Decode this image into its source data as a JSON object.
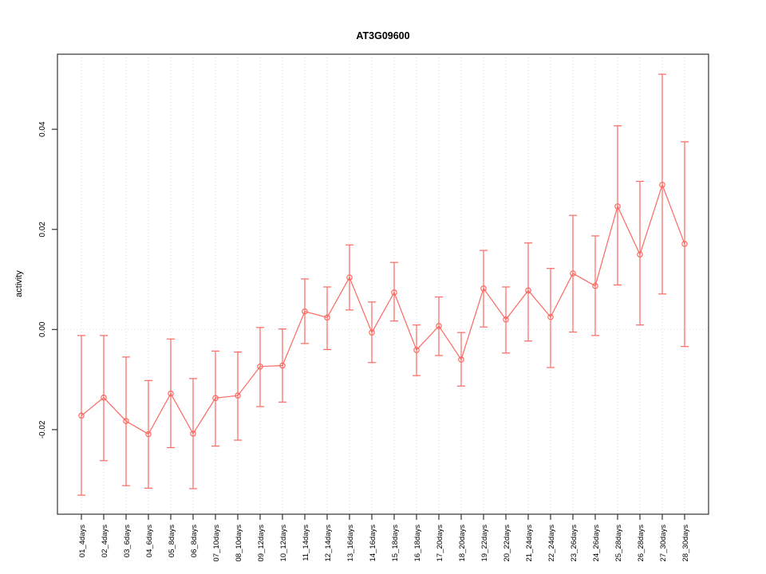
{
  "chart_data": {
    "type": "line",
    "title": "AT3G09600",
    "ylabel": "activity",
    "xlabel": "",
    "legend": "none",
    "marker": "open-circle",
    "error_bars": true,
    "grid": "dotted vertical gridline at every category; dotted horizontal line at 0",
    "series_color": "#fb6962",
    "grid_color": "#dedede",
    "axis_color": "#333333",
    "categories": [
      "01_4days",
      "02_4days",
      "03_6days",
      "04_6days",
      "05_8days",
      "06_8days",
      "07_10days",
      "08_10days",
      "09_12days",
      "10_12days",
      "11_14days",
      "12_14days",
      "13_16days",
      "14_16days",
      "15_18days",
      "16_18days",
      "17_20days",
      "18_20days",
      "19_22days",
      "20_22days",
      "21_24days",
      "22_24days",
      "23_26days",
      "24_26days",
      "25_28days",
      "26_28days",
      "27_30days",
      "28_30days"
    ],
    "values": [
      -0.0172,
      -0.0136,
      -0.0183,
      -0.0209,
      -0.0128,
      -0.0208,
      -0.0137,
      -0.0132,
      -0.0074,
      -0.0072,
      0.0036,
      0.0024,
      0.0104,
      -0.0006,
      0.0074,
      -0.0041,
      0.0007,
      -0.006,
      0.0082,
      0.002,
      0.0078,
      0.0025,
      0.0112,
      0.0087,
      0.0246,
      0.015,
      0.0289,
      0.0171
    ],
    "error_upper": [
      -0.0012,
      -0.0012,
      -0.0055,
      -0.0102,
      -0.0019,
      -0.0098,
      -0.0043,
      -0.0045,
      0.0004,
      0.0001,
      0.0101,
      0.0085,
      0.0169,
      0.0055,
      0.0134,
      0.0009,
      0.0065,
      -0.0006,
      0.0158,
      0.0085,
      0.0173,
      0.0122,
      0.0228,
      0.0187,
      0.0407,
      0.0296,
      0.051,
      0.0375
    ],
    "error_lower": [
      -0.0331,
      -0.0262,
      -0.0312,
      -0.0317,
      -0.0236,
      -0.0318,
      -0.0233,
      -0.0221,
      -0.0154,
      -0.0145,
      -0.0028,
      -0.004,
      0.0039,
      -0.0066,
      0.0017,
      -0.0092,
      -0.0052,
      -0.0113,
      0.0005,
      -0.0047,
      -0.0023,
      -0.0076,
      -0.0005,
      -0.0012,
      0.0089,
      0.0009,
      0.0071,
      -0.0034
    ],
    "ytick_values": [
      -0.02,
      0.0,
      0.02,
      0.04
    ],
    "ytick_labels": [
      "-0.02",
      "0.00",
      "0.02",
      "0.04"
    ],
    "ylim": [
      -0.0369,
      0.055
    ]
  }
}
